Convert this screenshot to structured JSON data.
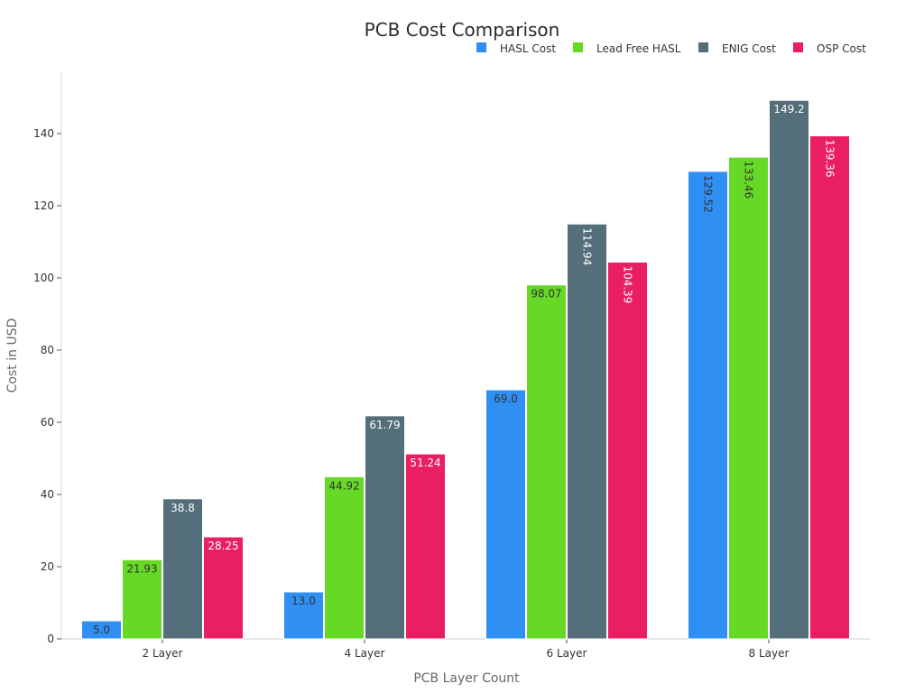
{
  "chart_data": {
    "type": "bar",
    "title": "PCB Cost Comparison",
    "xlabel": "PCB Layer Count",
    "ylabel": "Cost in USD",
    "categories": [
      "2 Layer",
      "4 Layer",
      "6 Layer",
      "8 Layer"
    ],
    "ylim": [
      0,
      155
    ],
    "yticks": [
      0,
      20,
      40,
      60,
      80,
      100,
      120,
      140
    ],
    "grid": false,
    "legend_position": "top-right",
    "series": [
      {
        "name": "HASL Cost",
        "color": "#2f8ff3",
        "label_color": "#333333",
        "values": [
          5.0,
          13.0,
          69.0,
          129.52
        ],
        "labels": [
          "5.0",
          "13.0",
          "69.0",
          "129.52"
        ]
      },
      {
        "name": "Lead Free HASL",
        "color": "#66d926",
        "label_color": "#333333",
        "values": [
          21.93,
          44.92,
          98.07,
          133.46
        ],
        "labels": [
          "21.93",
          "44.92",
          "98.07",
          "133.46"
        ]
      },
      {
        "name": "ENIG Cost",
        "color": "#546e7a",
        "label_color": "#ffffff",
        "values": [
          38.8,
          61.79,
          114.94,
          149.2
        ],
        "labels": [
          "38.8",
          "61.79",
          "114.94",
          "149.2"
        ]
      },
      {
        "name": "OSP Cost",
        "color": "#e91e63",
        "label_color": "#ffffff",
        "values": [
          28.25,
          51.24,
          104.39,
          139.36
        ],
        "labels": [
          "28.25",
          "51.24",
          "104.39",
          "139.36"
        ]
      }
    ]
  }
}
